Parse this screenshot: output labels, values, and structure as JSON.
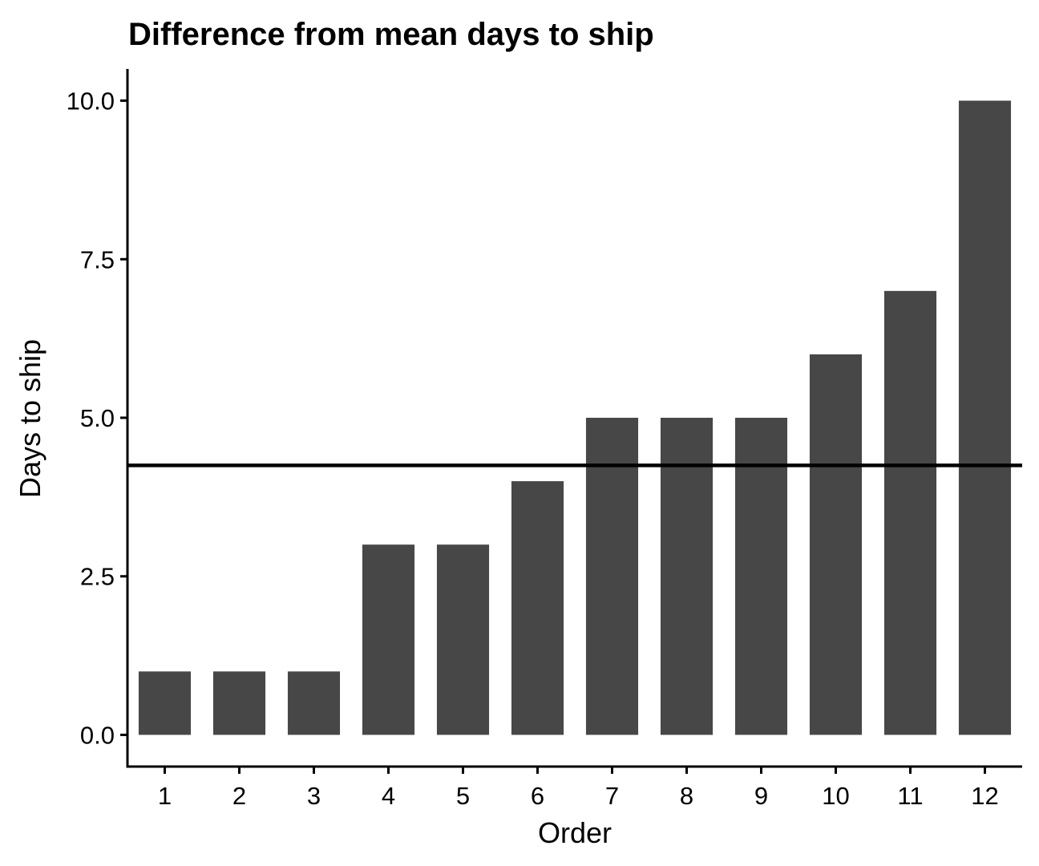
{
  "chart_data": {
    "type": "bar",
    "title": "Difference from mean days to ship",
    "xlabel": "Order",
    "ylabel": "Days to ship",
    "categories": [
      "1",
      "2",
      "3",
      "4",
      "5",
      "6",
      "7",
      "8",
      "9",
      "10",
      "11",
      "12"
    ],
    "values": [
      1,
      1,
      1,
      3,
      3,
      4,
      5,
      5,
      5,
      6,
      7,
      10
    ],
    "ylim": [
      -0.5,
      10.5
    ],
    "yticks": [
      0,
      2.5,
      5,
      7.5,
      10
    ],
    "ytick_labels": [
      "0.0",
      "2.5",
      "5.0",
      "7.5",
      "10.0"
    ],
    "reference_line": {
      "type": "horizontal",
      "value": 4.25
    },
    "grid": false,
    "legend": "none",
    "colors": {
      "bar": "#474747",
      "reference_line": "#000000",
      "axis": "#000000"
    }
  }
}
